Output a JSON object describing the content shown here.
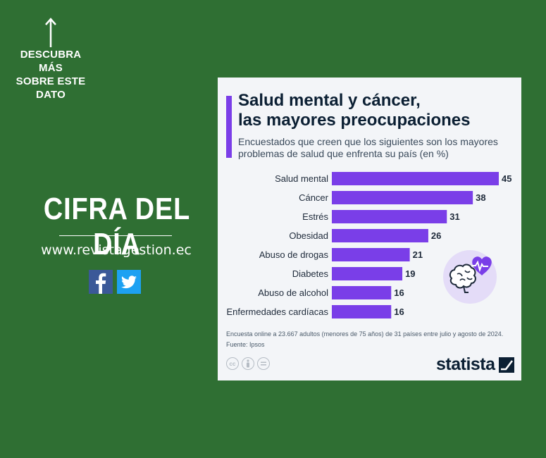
{
  "left_panel": {
    "cta_lines": [
      "DESCUBRA MÁS",
      "SOBRE ESTE",
      "DATO"
    ],
    "headline": "CIFRA DEL DÍA",
    "website": "www.revistagestion.ec"
  },
  "card": {
    "title_lines": [
      "Salud mental y cáncer,",
      "las mayores preocupaciones"
    ],
    "subtitle_lines": [
      "Encuestados que creen que los siguientes son los mayores",
      "problemas de salud que enfrenta su país (en %)"
    ],
    "note": "Encuesta online a 23.667 adultos (menores de 75 años) de 31 países entre julio y agosto de 2024.",
    "source": "Fuente: Ipsos",
    "brand": "statista",
    "license_icons": [
      "cc-icon",
      "by-icon",
      "nd-icon"
    ],
    "accent_color": "#7a3ee8"
  },
  "chart_data": {
    "type": "bar",
    "orientation": "horizontal",
    "categories": [
      "Salud mental",
      "Cáncer",
      "Estrés",
      "Obesidad",
      "Abuso de drogas",
      "Diabetes",
      "Abuso de alcohol",
      "Enfermedades cardíacas"
    ],
    "values": [
      45,
      38,
      31,
      26,
      21,
      19,
      16,
      16
    ],
    "data_labels": [
      "45",
      "38",
      "31",
      "26",
      "21",
      "19",
      "16",
      "16"
    ],
    "bar_color": "#7a3ee8",
    "xlim": [
      0,
      45
    ],
    "grid": false,
    "legend": "none"
  }
}
